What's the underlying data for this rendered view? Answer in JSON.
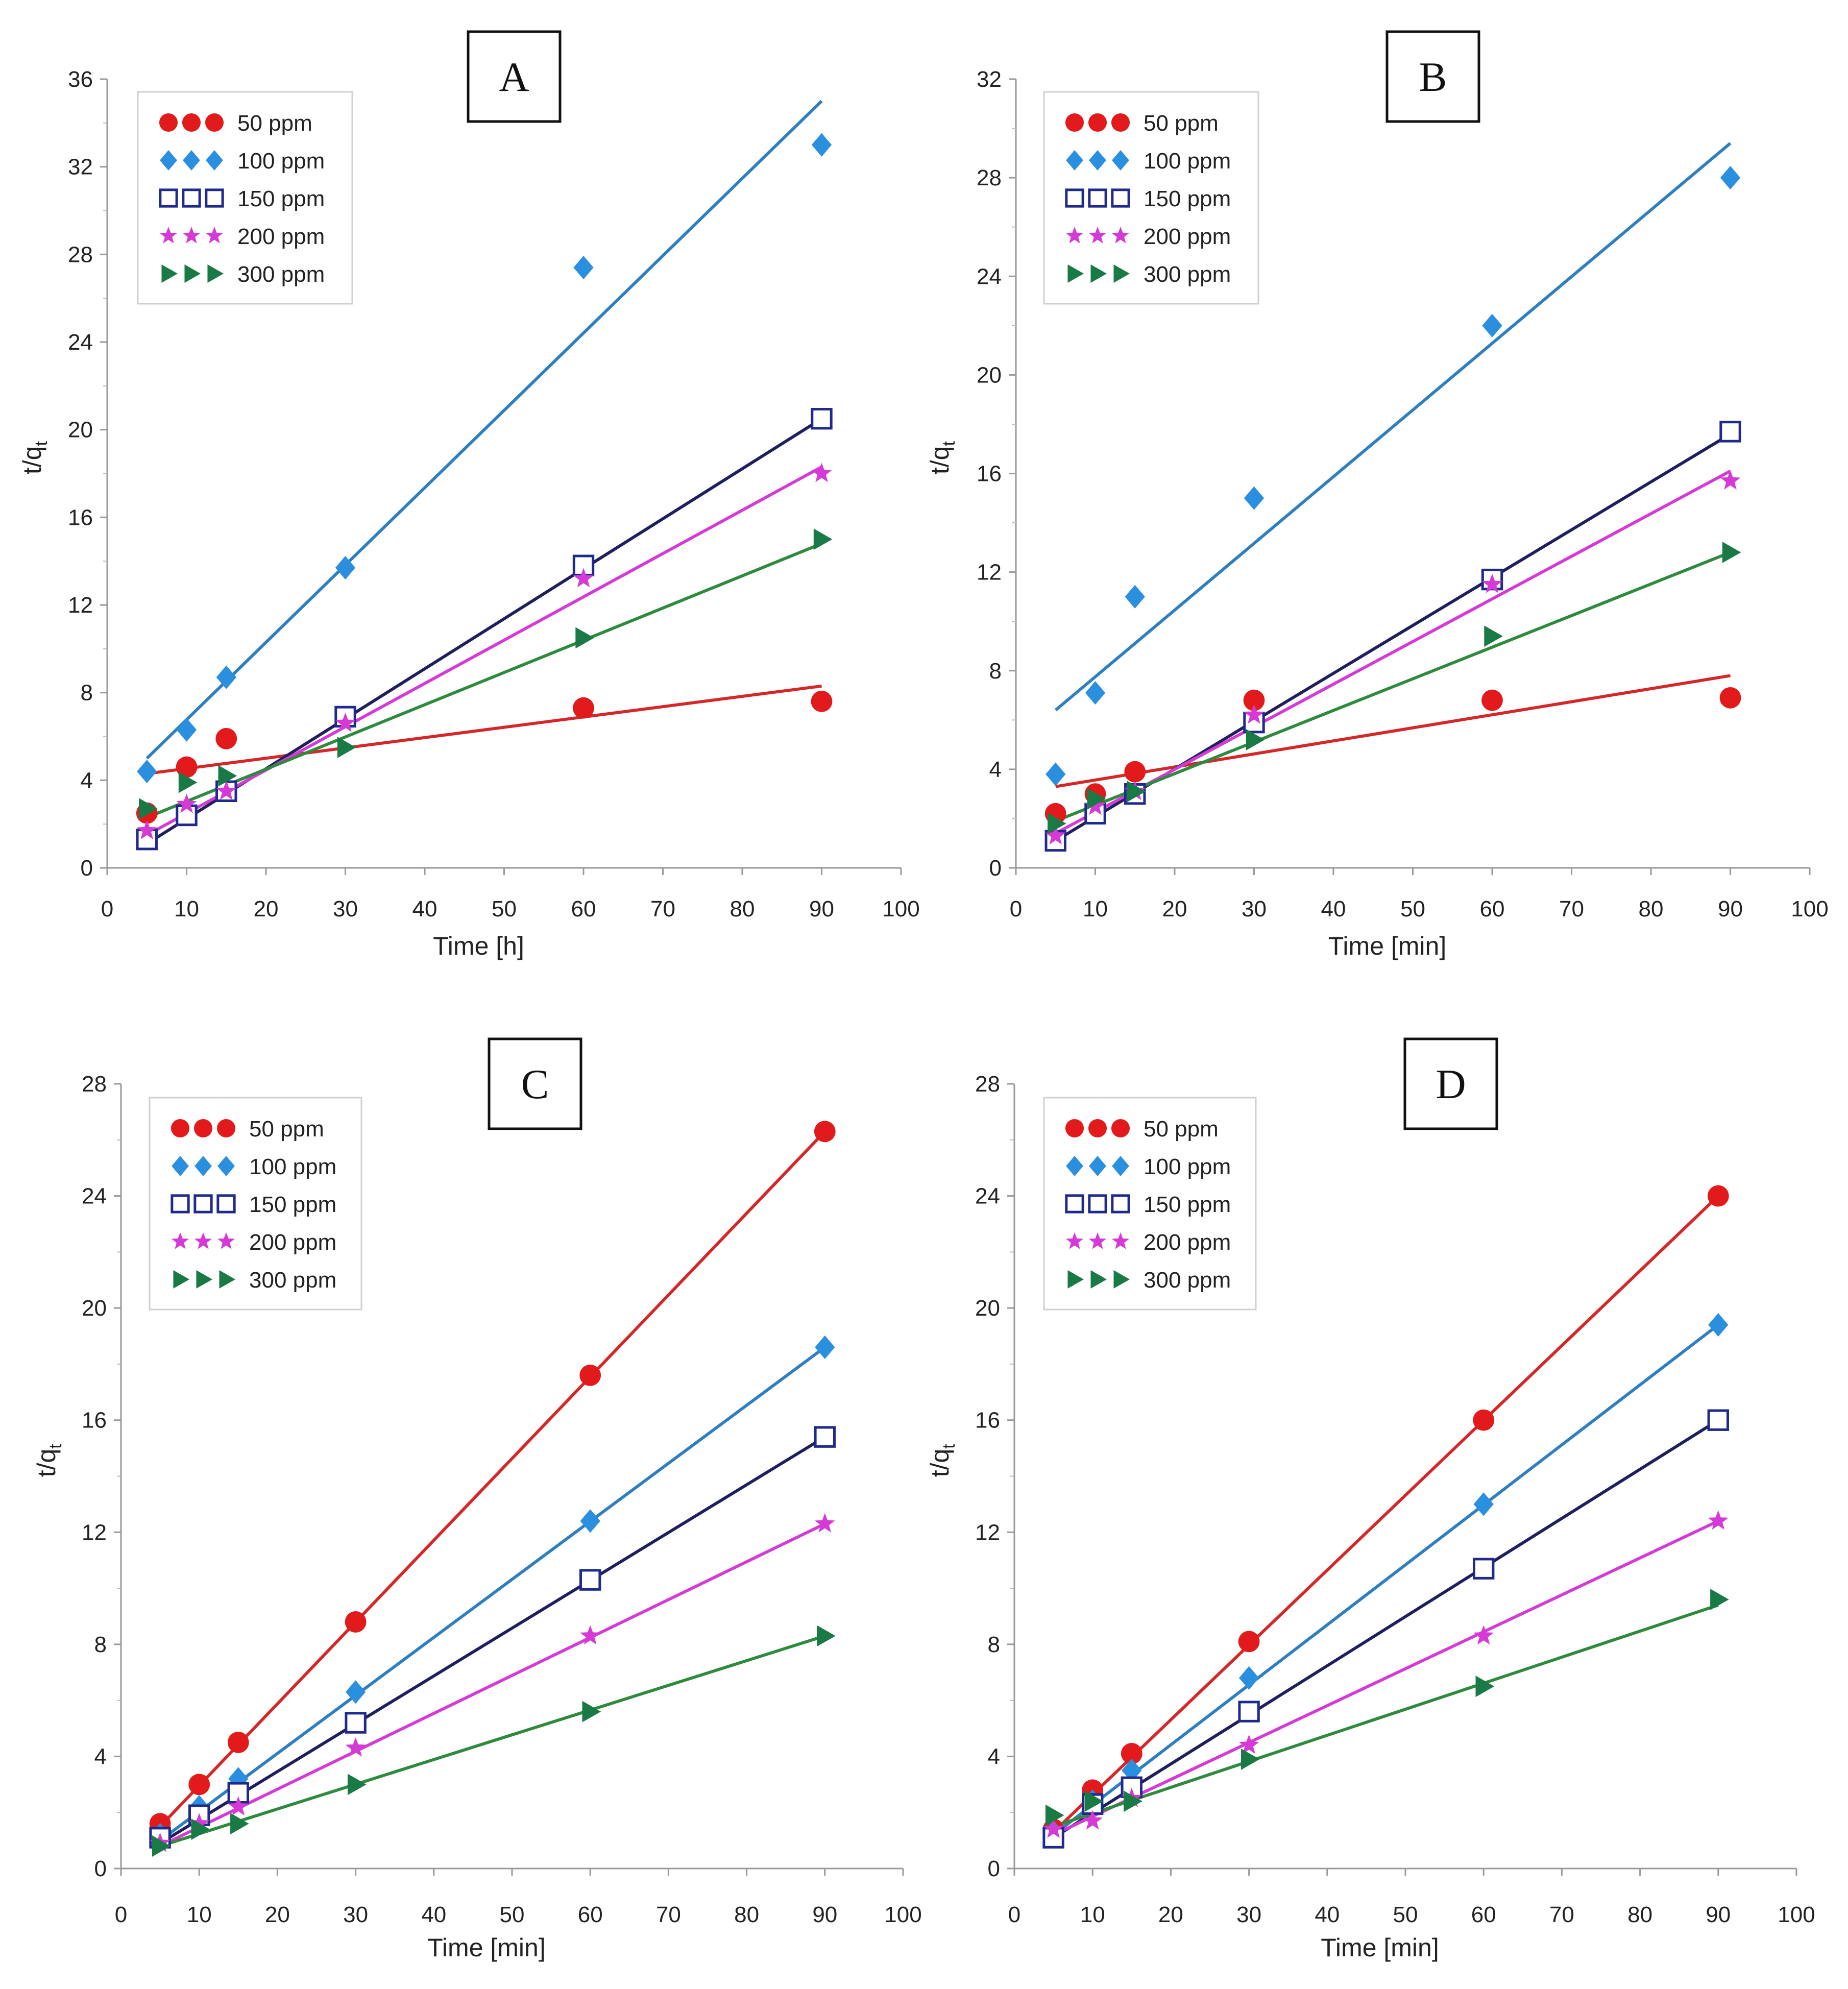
{
  "chart_data": [
    {
      "type": "scatter",
      "panel_label": "A",
      "xlabel": "Time [h]",
      "ylabel": "t/qt",
      "ylabel_main": "t/q",
      "ylabel_sub": "t",
      "xlim": [
        0,
        100
      ],
      "ylim": [
        0,
        36
      ],
      "xticks": [
        0,
        10,
        20,
        30,
        40,
        50,
        60,
        70,
        80,
        90,
        100
      ],
      "yticks": [
        0,
        4,
        8,
        12,
        16,
        20,
        24,
        28,
        32,
        36
      ],
      "grid": false,
      "legend_position": "top-left",
      "series": [
        {
          "name": "50 ppm",
          "marker": "circle",
          "color": "#e31a1c",
          "line_color": "#d62728",
          "x": [
            5,
            10,
            15,
            30,
            60,
            90
          ],
          "y": [
            2.5,
            4.6,
            5.9,
            6.9,
            7.3,
            7.6
          ],
          "fit": [
            [
              5,
              4.3
            ],
            [
              90,
              8.3
            ]
          ]
        },
        {
          "name": "100 ppm",
          "marker": "diamond",
          "color": "#2b8fe0",
          "line_color": "#2e7fc0",
          "x": [
            5,
            10,
            15,
            30,
            60,
            90
          ],
          "y": [
            4.4,
            6.3,
            8.7,
            13.7,
            27.4,
            33.0
          ],
          "fit": [
            [
              5,
              5.0
            ],
            [
              90,
              35.0
            ]
          ]
        },
        {
          "name": "150 ppm",
          "marker": "square",
          "color": "#1f2a8c",
          "line_color": "#1f1f5e",
          "x": [
            5,
            10,
            15,
            30,
            60,
            90
          ],
          "y": [
            1.3,
            2.4,
            3.5,
            6.9,
            13.8,
            20.5
          ],
          "fit": [
            [
              5,
              1.1
            ],
            [
              90,
              20.5
            ]
          ]
        },
        {
          "name": "200 ppm",
          "marker": "star",
          "color": "#d63ad6",
          "line_color": "#d63ad6",
          "x": [
            5,
            10,
            15,
            30,
            60,
            90
          ],
          "y": [
            1.7,
            2.9,
            3.5,
            6.6,
            13.2,
            18.0
          ],
          "fit": [
            [
              5,
              1.5
            ],
            [
              90,
              18.3
            ]
          ]
        },
        {
          "name": "300 ppm",
          "marker": "triangle-right",
          "color": "#1a7a45",
          "line_color": "#2e8b3e",
          "x": [
            5,
            10,
            15,
            30,
            60,
            90
          ],
          "y": [
            2.7,
            3.9,
            4.2,
            5.5,
            10.5,
            15.0
          ],
          "fit": [
            [
              5,
              2.3
            ],
            [
              90,
              14.8
            ]
          ]
        }
      ]
    },
    {
      "type": "scatter",
      "panel_label": "B",
      "xlabel": "Time [min]",
      "ylabel": "t/qt",
      "ylabel_main": "t/q",
      "ylabel_sub": "t",
      "xlim": [
        0,
        100
      ],
      "ylim": [
        0,
        32
      ],
      "xticks": [
        0,
        10,
        20,
        30,
        40,
        50,
        60,
        70,
        80,
        90,
        100
      ],
      "yticks": [
        0,
        4,
        8,
        12,
        16,
        20,
        24,
        28,
        32
      ],
      "grid": false,
      "legend_position": "top-left",
      "series": [
        {
          "name": "50 ppm",
          "marker": "circle",
          "color": "#e31a1c",
          "line_color": "#d62728",
          "x": [
            5,
            10,
            15,
            30,
            60,
            90
          ],
          "y": [
            2.2,
            3.0,
            3.9,
            6.8,
            6.8,
            6.9
          ],
          "fit": [
            [
              5,
              3.3
            ],
            [
              90,
              7.8
            ]
          ]
        },
        {
          "name": "100 ppm",
          "marker": "diamond",
          "color": "#2b8fe0",
          "line_color": "#2e7fc0",
          "x": [
            5,
            10,
            15,
            30,
            60,
            90
          ],
          "y": [
            3.8,
            7.1,
            11.0,
            15.0,
            22.0,
            28.0
          ],
          "fit": [
            [
              5,
              6.4
            ],
            [
              90,
              29.4
            ]
          ]
        },
        {
          "name": "150 ppm",
          "marker": "square",
          "color": "#1f2a8c",
          "line_color": "#1f1f5e",
          "x": [
            5,
            10,
            15,
            30,
            60,
            90
          ],
          "y": [
            1.1,
            2.2,
            3.0,
            5.9,
            11.7,
            17.7
          ],
          "fit": [
            [
              5,
              1.1
            ],
            [
              90,
              17.6
            ]
          ]
        },
        {
          "name": "200 ppm",
          "marker": "star",
          "color": "#d63ad6",
          "line_color": "#d63ad6",
          "x": [
            5,
            10,
            15,
            30,
            60,
            90
          ],
          "y": [
            1.3,
            2.5,
            3.1,
            6.2,
            11.5,
            15.7
          ],
          "fit": [
            [
              5,
              1.4
            ],
            [
              90,
              16.1
            ]
          ]
        },
        {
          "name": "300 ppm",
          "marker": "triangle-right",
          "color": "#1a7a45",
          "line_color": "#2e8b3e",
          "x": [
            5,
            10,
            15,
            30,
            60,
            90
          ],
          "y": [
            1.8,
            2.8,
            3.1,
            5.2,
            9.4,
            12.8
          ],
          "fit": [
            [
              5,
              1.9
            ],
            [
              90,
              12.8
            ]
          ]
        }
      ]
    },
    {
      "type": "scatter",
      "panel_label": "C",
      "xlabel": "Time [min]",
      "ylabel": "t/qt",
      "ylabel_main": "t/q",
      "ylabel_sub": "t",
      "xlim": [
        0,
        100
      ],
      "ylim": [
        0,
        28
      ],
      "xticks": [
        0,
        10,
        20,
        30,
        40,
        50,
        60,
        70,
        80,
        90,
        100
      ],
      "yticks": [
        0,
        4,
        8,
        12,
        16,
        20,
        24,
        28
      ],
      "grid": false,
      "legend_position": "top-left",
      "series": [
        {
          "name": "50 ppm",
          "marker": "circle",
          "color": "#e31a1c",
          "line_color": "#d62728",
          "x": [
            5,
            10,
            15,
            30,
            60,
            90
          ],
          "y": [
            1.6,
            3.0,
            4.5,
            8.8,
            17.6,
            26.3
          ],
          "fit": [
            [
              5,
              1.5
            ],
            [
              90,
              26.3
            ]
          ]
        },
        {
          "name": "100 ppm",
          "marker": "diamond",
          "color": "#2b8fe0",
          "line_color": "#2e7fc0",
          "x": [
            5,
            10,
            15,
            30,
            60,
            90
          ],
          "y": [
            1.2,
            2.2,
            3.2,
            6.3,
            12.4,
            18.6
          ],
          "fit": [
            [
              5,
              1.0
            ],
            [
              90,
              18.6
            ]
          ]
        },
        {
          "name": "150 ppm",
          "marker": "square",
          "color": "#1f2a8c",
          "line_color": "#1f1f5e",
          "x": [
            5,
            10,
            15,
            30,
            60,
            90
          ],
          "y": [
            1.1,
            1.9,
            2.7,
            5.2,
            10.3,
            15.4
          ],
          "fit": [
            [
              5,
              0.9
            ],
            [
              90,
              15.4
            ]
          ]
        },
        {
          "name": "200 ppm",
          "marker": "star",
          "color": "#d63ad6",
          "line_color": "#d63ad6",
          "x": [
            5,
            10,
            15,
            30,
            60,
            90
          ],
          "y": [
            0.9,
            1.6,
            2.2,
            4.3,
            8.3,
            12.3
          ],
          "fit": [
            [
              5,
              0.8
            ],
            [
              90,
              12.3
            ]
          ]
        },
        {
          "name": "300 ppm",
          "marker": "triangle-right",
          "color": "#1a7a45",
          "line_color": "#2e8b3e",
          "x": [
            5,
            10,
            15,
            30,
            60,
            90
          ],
          "y": [
            0.8,
            1.4,
            1.6,
            3.0,
            5.6,
            8.3
          ],
          "fit": [
            [
              5,
              0.8
            ],
            [
              90,
              8.3
            ]
          ]
        }
      ]
    },
    {
      "type": "scatter",
      "panel_label": "D",
      "xlabel": "Time [min]",
      "ylabel": "t/qt",
      "ylabel_main": "t/q",
      "ylabel_sub": "t",
      "xlim": [
        0,
        100
      ],
      "ylim": [
        0,
        28
      ],
      "xticks": [
        0,
        10,
        20,
        30,
        40,
        50,
        60,
        70,
        80,
        90,
        100
      ],
      "yticks": [
        0,
        4,
        8,
        12,
        16,
        20,
        24,
        28
      ],
      "grid": false,
      "legend_position": "top-left",
      "series": [
        {
          "name": "50 ppm",
          "marker": "circle",
          "color": "#e31a1c",
          "line_color": "#d62728",
          "x": [
            5,
            10,
            15,
            30,
            60,
            90
          ],
          "y": [
            1.4,
            2.8,
            4.1,
            8.1,
            16.0,
            24.0
          ],
          "fit": [
            [
              5,
              1.3
            ],
            [
              90,
              24.0
            ]
          ]
        },
        {
          "name": "100 ppm",
          "marker": "diamond",
          "color": "#2b8fe0",
          "line_color": "#2e7fc0",
          "x": [
            5,
            10,
            15,
            30,
            60,
            90
          ],
          "y": [
            1.3,
            2.4,
            3.5,
            6.8,
            13.0,
            19.4
          ],
          "fit": [
            [
              5,
              1.2
            ],
            [
              90,
              19.4
            ]
          ]
        },
        {
          "name": "150 ppm",
          "marker": "square",
          "color": "#1f2a8c",
          "line_color": "#1f1f5e",
          "x": [
            5,
            10,
            15,
            30,
            60,
            90
          ],
          "y": [
            1.1,
            2.3,
            2.9,
            5.6,
            10.7,
            16.0
          ],
          "fit": [
            [
              5,
              1.1
            ],
            [
              90,
              16.0
            ]
          ]
        },
        {
          "name": "200 ppm",
          "marker": "star",
          "color": "#d63ad6",
          "line_color": "#d63ad6",
          "x": [
            5,
            10,
            15,
            30,
            60,
            90
          ],
          "y": [
            1.4,
            1.7,
            2.5,
            4.4,
            8.3,
            12.4
          ],
          "fit": [
            [
              5,
              1.2
            ],
            [
              90,
              12.4
            ]
          ]
        },
        {
          "name": "300 ppm",
          "marker": "triangle-right",
          "color": "#1a7a45",
          "line_color": "#2e8b3e",
          "x": [
            5,
            10,
            15,
            30,
            60,
            90
          ],
          "y": [
            1.9,
            2.4,
            2.4,
            3.9,
            6.5,
            9.6
          ],
          "fit": [
            [
              5,
              1.5
            ],
            [
              90,
              9.4
            ]
          ]
        }
      ]
    }
  ]
}
